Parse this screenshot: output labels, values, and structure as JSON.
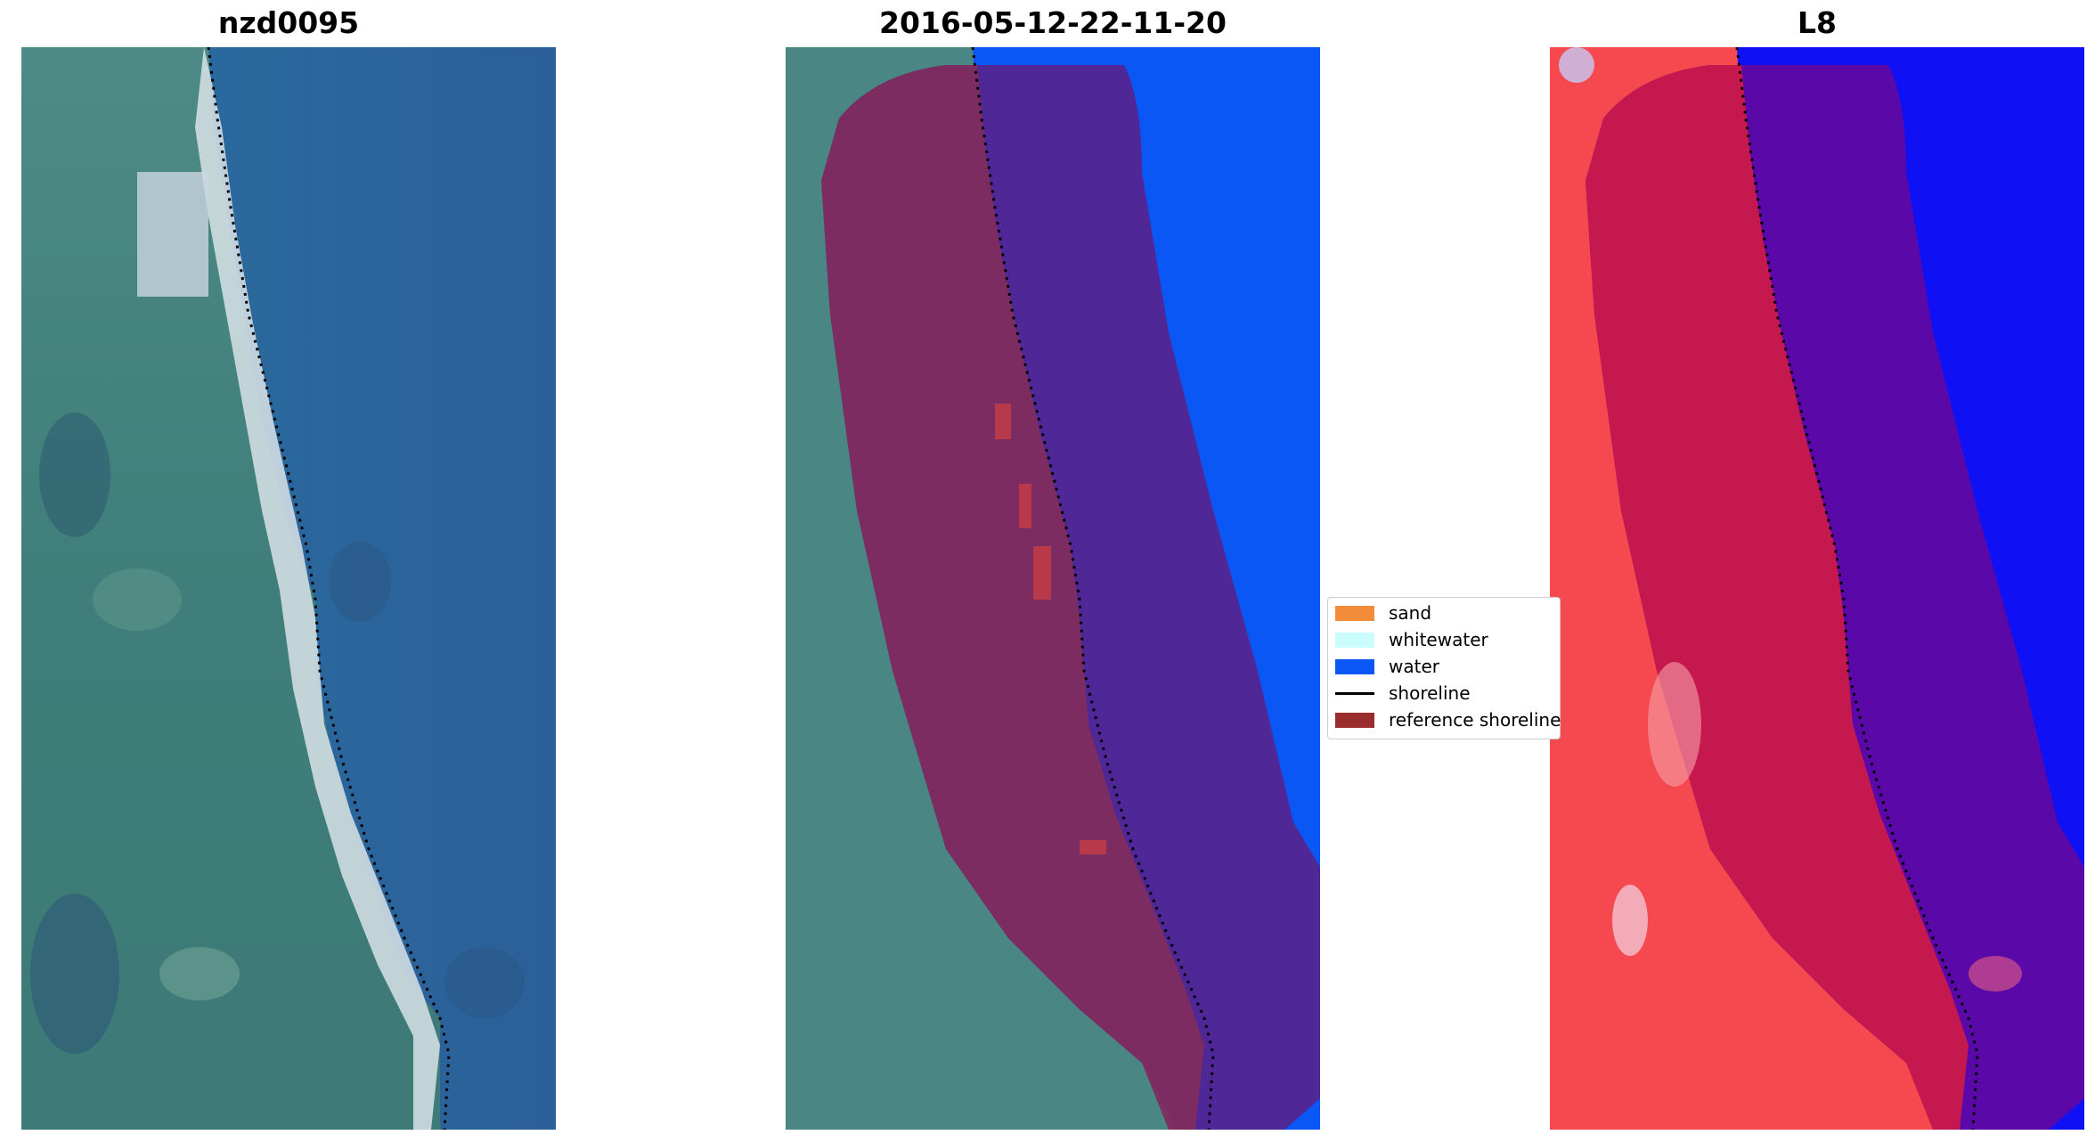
{
  "panels": [
    {
      "title": "nzd0095",
      "kind": "rgb-image"
    },
    {
      "title": "2016-05-12-22-11-20",
      "kind": "classified-overlay"
    },
    {
      "title": "L8",
      "kind": "index-image"
    }
  ],
  "legend": {
    "items": [
      {
        "label": "sand",
        "color": "#f28c3a",
        "type": "patch"
      },
      {
        "label": "whitewater",
        "color": "#ccfdfd",
        "type": "patch"
      },
      {
        "label": "water",
        "color": "#0a57f5",
        "type": "patch"
      },
      {
        "label": "shoreline",
        "color": "#000000",
        "type": "line"
      },
      {
        "label": "reference shoreline",
        "color": "#992c2c",
        "type": "patch"
      }
    ]
  }
}
